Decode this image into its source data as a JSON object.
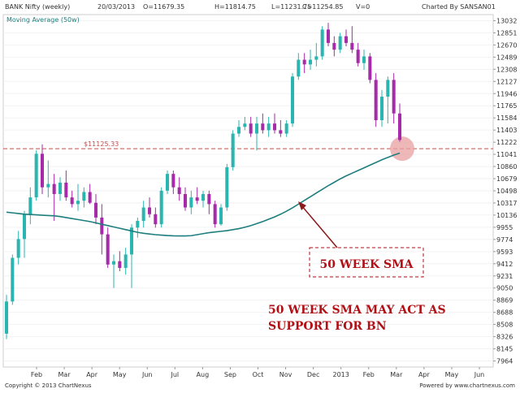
{
  "header": {
    "symbol": "BANK Nifty (weekly)",
    "date": "20/03/2013",
    "open": "O=11679.35",
    "high": "H=11814.75",
    "low": "L=11231.75",
    "close": "C=11254.85",
    "volume": "V=0",
    "charted_by": "Charted By SANSAN01",
    "ma_label": "Moving Average (50w)"
  },
  "footer": {
    "copyright": "Copyright © 2013 ChartNexus",
    "powered": "Powered by www.chartnexus.com"
  },
  "colors": {
    "up": "#2bb5b0",
    "down": "#a62ba8",
    "ma": "#1e7e7e",
    "support_line": "#c0504d",
    "annotation": "#b01016",
    "highlight": "#e8a0a0"
  },
  "chart_data": {
    "type": "candlestick",
    "x_tick_labels": [
      "Feb",
      "Mar",
      "Apr",
      "May",
      "Jun",
      "Jul",
      "Aug",
      "Sep",
      "Oct",
      "Nov",
      "Dec",
      "2013",
      "Feb",
      "Mar",
      "Apr",
      "May",
      "Jun"
    ],
    "y_ticks": [
      7964,
      8145,
      8326,
      8508,
      8688,
      8869,
      9050,
      9231,
      9412,
      9593,
      9774,
      9955,
      10136,
      10317,
      10498,
      10679,
      10860,
      11041,
      11222,
      11403,
      11584,
      11765,
      11946,
      12127,
      12308,
      12489,
      12670,
      12851,
      13032
    ],
    "ylim": [
      7874,
      13122
    ],
    "support_level": 11125.33,
    "support_label": "11125.33",
    "candles": [
      {
        "o": 8370,
        "h": 8950,
        "l": 8290,
        "c": 8850
      },
      {
        "o": 8850,
        "h": 9550,
        "l": 8800,
        "c": 9500
      },
      {
        "o": 9500,
        "h": 9900,
        "l": 9400,
        "c": 9780
      },
      {
        "o": 9780,
        "h": 10200,
        "l": 9500,
        "c": 10150
      },
      {
        "o": 10150,
        "h": 10550,
        "l": 10000,
        "c": 10400
      },
      {
        "o": 10400,
        "h": 11100,
        "l": 10350,
        "c": 11050
      },
      {
        "o": 11050,
        "h": 11190,
        "l": 10450,
        "c": 10550
      },
      {
        "o": 10550,
        "h": 10950,
        "l": 10400,
        "c": 10600
      },
      {
        "o": 10600,
        "h": 10750,
        "l": 10050,
        "c": 10450
      },
      {
        "o": 10450,
        "h": 10700,
        "l": 10350,
        "c": 10620
      },
      {
        "o": 10620,
        "h": 10800,
        "l": 10350,
        "c": 10400
      },
      {
        "o": 10400,
        "h": 10500,
        "l": 10250,
        "c": 10300
      },
      {
        "o": 10300,
        "h": 10600,
        "l": 10200,
        "c": 10350
      },
      {
        "o": 10350,
        "h": 10550,
        "l": 10250,
        "c": 10480
      },
      {
        "o": 10480,
        "h": 10600,
        "l": 10300,
        "c": 10320
      },
      {
        "o": 10320,
        "h": 10450,
        "l": 10000,
        "c": 10100
      },
      {
        "o": 10100,
        "h": 10300,
        "l": 9550,
        "c": 9850
      },
      {
        "o": 9850,
        "h": 9950,
        "l": 9350,
        "c": 9400
      },
      {
        "o": 9400,
        "h": 9550,
        "l": 9050,
        "c": 9450
      },
      {
        "o": 9450,
        "h": 9600,
        "l": 9300,
        "c": 9350
      },
      {
        "o": 9350,
        "h": 9650,
        "l": 9250,
        "c": 9550
      },
      {
        "o": 9550,
        "h": 10000,
        "l": 9050,
        "c": 9950
      },
      {
        "o": 9950,
        "h": 10100,
        "l": 9800,
        "c": 10050
      },
      {
        "o": 10050,
        "h": 10350,
        "l": 9950,
        "c": 10250
      },
      {
        "o": 10250,
        "h": 10400,
        "l": 10100,
        "c": 10150
      },
      {
        "o": 10150,
        "h": 10250,
        "l": 9950,
        "c": 10000
      },
      {
        "o": 10000,
        "h": 10550,
        "l": 9950,
        "c": 10500
      },
      {
        "o": 10500,
        "h": 10800,
        "l": 10450,
        "c": 10750
      },
      {
        "o": 10750,
        "h": 10800,
        "l": 10450,
        "c": 10550
      },
      {
        "o": 10550,
        "h": 10700,
        "l": 10350,
        "c": 10450
      },
      {
        "o": 10450,
        "h": 10550,
        "l": 10200,
        "c": 10250
      },
      {
        "o": 10250,
        "h": 10500,
        "l": 10150,
        "c": 10400
      },
      {
        "o": 10400,
        "h": 10550,
        "l": 10300,
        "c": 10350
      },
      {
        "o": 10350,
        "h": 10500,
        "l": 10250,
        "c": 10450
      },
      {
        "o": 10450,
        "h": 10500,
        "l": 10150,
        "c": 10300
      },
      {
        "o": 10300,
        "h": 10350,
        "l": 9950,
        "c": 10000
      },
      {
        "o": 10000,
        "h": 10300,
        "l": 9980,
        "c": 10250
      },
      {
        "o": 10250,
        "h": 10900,
        "l": 10200,
        "c": 10850
      },
      {
        "o": 10850,
        "h": 11400,
        "l": 10800,
        "c": 11350
      },
      {
        "o": 11350,
        "h": 11550,
        "l": 11300,
        "c": 11450
      },
      {
        "o": 11450,
        "h": 11600,
        "l": 11400,
        "c": 11500
      },
      {
        "o": 11500,
        "h": 11600,
        "l": 11300,
        "c": 11350
      },
      {
        "o": 11350,
        "h": 11600,
        "l": 11100,
        "c": 11500
      },
      {
        "o": 11500,
        "h": 11650,
        "l": 11350,
        "c": 11400
      },
      {
        "o": 11400,
        "h": 11600,
        "l": 11300,
        "c": 11500
      },
      {
        "o": 11500,
        "h": 11650,
        "l": 11350,
        "c": 11400
      },
      {
        "o": 11400,
        "h": 11550,
        "l": 11300,
        "c": 11350
      },
      {
        "o": 11350,
        "h": 11550,
        "l": 11300,
        "c": 11500
      },
      {
        "o": 11500,
        "h": 12250,
        "l": 11450,
        "c": 12200
      },
      {
        "o": 12200,
        "h": 12550,
        "l": 12150,
        "c": 12450
      },
      {
        "o": 12450,
        "h": 12550,
        "l": 12250,
        "c": 12380
      },
      {
        "o": 12380,
        "h": 12600,
        "l": 12300,
        "c": 12450
      },
      {
        "o": 12450,
        "h": 12700,
        "l": 12350,
        "c": 12500
      },
      {
        "o": 12500,
        "h": 12950,
        "l": 12450,
        "c": 12900
      },
      {
        "o": 12900,
        "h": 13000,
        "l": 12650,
        "c": 12700
      },
      {
        "o": 12700,
        "h": 12800,
        "l": 12500,
        "c": 12600
      },
      {
        "o": 12600,
        "h": 12850,
        "l": 12550,
        "c": 12800
      },
      {
        "o": 12800,
        "h": 12900,
        "l": 12650,
        "c": 12700
      },
      {
        "o": 12700,
        "h": 12950,
        "l": 12550,
        "c": 12600
      },
      {
        "o": 12600,
        "h": 12700,
        "l": 12350,
        "c": 12400
      },
      {
        "o": 12400,
        "h": 12600,
        "l": 12300,
        "c": 12500
      },
      {
        "o": 12500,
        "h": 12550,
        "l": 12100,
        "c": 12150
      },
      {
        "o": 12150,
        "h": 12250,
        "l": 11450,
        "c": 11550
      },
      {
        "o": 11550,
        "h": 12000,
        "l": 11450,
        "c": 11900
      },
      {
        "o": 11900,
        "h": 12200,
        "l": 11500,
        "c": 12150
      },
      {
        "o": 12150,
        "h": 12250,
        "l": 11500,
        "c": 11650
      },
      {
        "o": 11650,
        "h": 11800,
        "l": 11230,
        "c": 11255
      }
    ],
    "moving_average_50w": [
      10180,
      10170,
      10160,
      10150,
      10145,
      10140,
      10135,
      10130,
      10125,
      10115,
      10100,
      10085,
      10070,
      10055,
      10040,
      10020,
      10000,
      9980,
      9960,
      9940,
      9920,
      9900,
      9880,
      9865,
      9855,
      9845,
      9838,
      9832,
      9828,
      9826,
      9826,
      9830,
      9845,
      9860,
      9875,
      9885,
      9895,
      9905,
      9920,
      9935,
      9955,
      9980,
      10010,
      10040,
      10075,
      10110,
      10150,
      10195,
      10245,
      10300,
      10355,
      10410,
      10465,
      10520,
      10575,
      10625,
      10675,
      10720,
      10760,
      10800,
      10840,
      10880,
      10920,
      10960,
      10995,
      11030,
      11060
    ],
    "annotations": {
      "sma_box_label": "50 WEEK SMA",
      "note_line1": "50 WEEK SMA MAY ACT AS",
      "note_line2": "SUPPORT FOR BN"
    }
  }
}
